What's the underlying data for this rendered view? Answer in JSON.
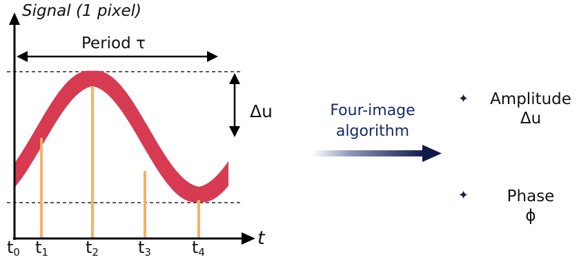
{
  "y_axis_title": "Signal (1 pixel)",
  "x_axis_title": "t",
  "period_label": "Period τ",
  "amplitude_delta_label": "Δu",
  "time_ticks": [
    {
      "base": "t",
      "sub": "0"
    },
    {
      "base": "t",
      "sub": "1"
    },
    {
      "base": "t",
      "sub": "2"
    },
    {
      "base": "t",
      "sub": "3"
    },
    {
      "base": "t",
      "sub": "4"
    }
  ],
  "algorithm_label": "Four-image algorithm",
  "outputs": [
    {
      "line1": "Amplitude",
      "line2": "Δu",
      "marker": "sparkle-icon"
    },
    {
      "line1": "Phase",
      "line2": "ϕ",
      "marker": "sparkle-icon"
    }
  ],
  "colors": {
    "signal_band": "#d63b52",
    "sample_lines": "#f7b064",
    "algorithm_arrow": "#0e1a4a",
    "axis": "#000000"
  }
}
